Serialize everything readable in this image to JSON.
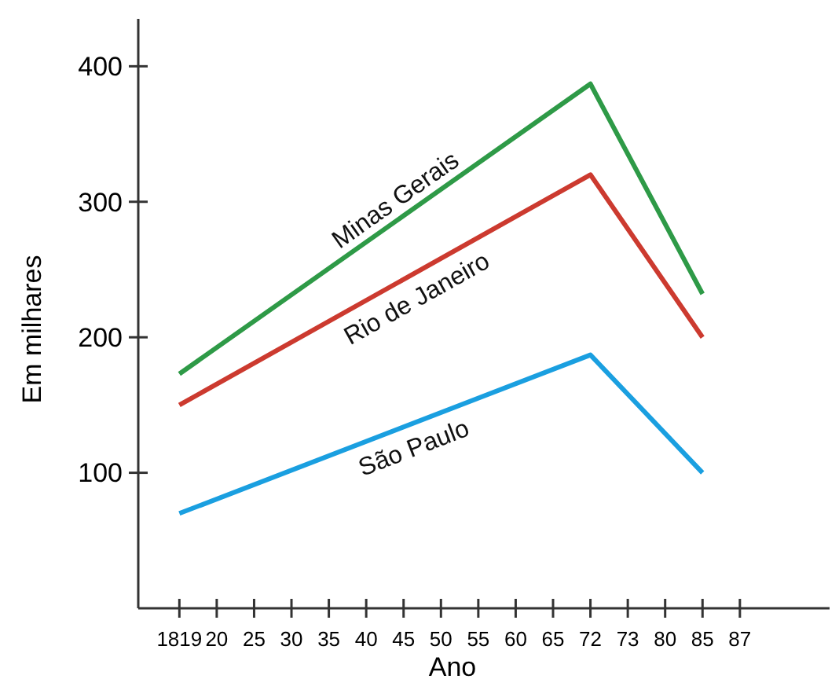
{
  "chart_data": {
    "type": "line",
    "xlabel": "Ano",
    "ylabel": "Em milhares",
    "categories": [
      "1819",
      "20",
      "25",
      "30",
      "35",
      "40",
      "45",
      "50",
      "55",
      "60",
      "65",
      "72",
      "73",
      "80",
      "85",
      "87"
    ],
    "ylim": [
      0,
      435
    ],
    "yticks": [
      100,
      200,
      300,
      400
    ],
    "grid": false,
    "legend": false,
    "marker": "none",
    "line_style": "solid",
    "series": [
      {
        "name": "Minas Gerais",
        "color": "#2e9a47",
        "values": [
          173,
          null,
          null,
          null,
          null,
          null,
          null,
          null,
          null,
          null,
          null,
          387,
          null,
          null,
          232,
          null
        ]
      },
      {
        "name": "Rio de Janeiro",
        "color": "#cc3a2f",
        "values": [
          150,
          null,
          null,
          null,
          null,
          null,
          null,
          null,
          null,
          null,
          null,
          320,
          null,
          null,
          200,
          null
        ]
      },
      {
        "name": "São Paulo",
        "color": "#1a9fe0",
        "values": [
          70,
          null,
          null,
          null,
          null,
          null,
          null,
          null,
          null,
          null,
          null,
          187,
          null,
          null,
          100,
          null
        ]
      }
    ]
  }
}
